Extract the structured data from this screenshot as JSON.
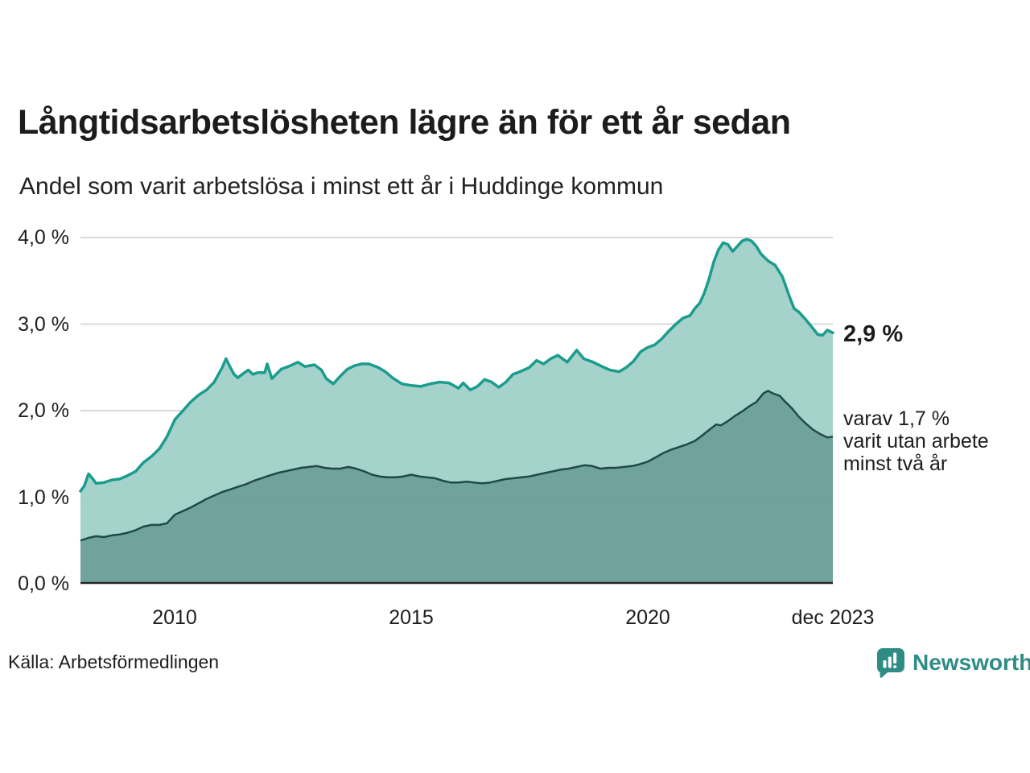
{
  "title": "Långtidsarbetslösheten lägre än för ett år sedan",
  "subtitle": "Andel som varit arbetslösa i minst ett år i Huddinge kommun",
  "source_note": "Källa: Arbetsförmedlingen",
  "brand": {
    "name": "Newsworthy",
    "color": "#2f8c85"
  },
  "annotations": {
    "latest_total": "2,9 %",
    "latest_two_years_lines": [
      "varav 1,7 %",
      "varit utan arbete",
      "minst två år"
    ]
  },
  "colors": {
    "line_long_term": "#1b9c8d",
    "fill_long_term": "#9bcec6",
    "line_two_years": "#1f4b45",
    "fill_two_years": "#6da09a",
    "gridline": "#d9d9d9",
    "baseline": "#262626",
    "text": "#1d1d1d"
  },
  "chart_data": {
    "type": "area",
    "title": "Långtidsarbetslösheten lägre än för ett år sedan",
    "subtitle": "Andel som varit arbetslösa i minst ett år i Huddinge kommun",
    "grid": true,
    "legend_position": "none",
    "x_axis": {
      "range": [
        2008.0,
        2023.92
      ],
      "tick_years": [
        2010,
        2015,
        2020,
        2023.92
      ],
      "tick_labels": [
        "2010",
        "2015",
        "2020",
        "dec 2023"
      ]
    },
    "y_axis": {
      "range": [
        0,
        4
      ],
      "tick_values": [
        0,
        1,
        2,
        3,
        4
      ],
      "tick_labels": [
        "0,0 %",
        "1,0 %",
        "2,0 %",
        "3,0 %",
        "4,0 %"
      ],
      "unit": "%"
    },
    "series": [
      {
        "name": "Andel som varit arbetslösa minst ett år",
        "end_label": "2,9 %",
        "end_value": 2.9,
        "points": [
          [
            2008.0,
            1.07
          ],
          [
            2008.08,
            1.13
          ],
          [
            2008.17,
            1.27
          ],
          [
            2008.25,
            1.22
          ],
          [
            2008.33,
            1.16
          ],
          [
            2008.5,
            1.17
          ],
          [
            2008.67,
            1.2
          ],
          [
            2008.83,
            1.21
          ],
          [
            2009.0,
            1.25
          ],
          [
            2009.17,
            1.3
          ],
          [
            2009.33,
            1.4
          ],
          [
            2009.5,
            1.47
          ],
          [
            2009.67,
            1.56
          ],
          [
            2009.83,
            1.7
          ],
          [
            2010.0,
            1.9
          ],
          [
            2010.17,
            2.0
          ],
          [
            2010.33,
            2.1
          ],
          [
            2010.5,
            2.18
          ],
          [
            2010.67,
            2.24
          ],
          [
            2010.83,
            2.33
          ],
          [
            2011.0,
            2.5
          ],
          [
            2011.08,
            2.6
          ],
          [
            2011.17,
            2.5
          ],
          [
            2011.25,
            2.42
          ],
          [
            2011.33,
            2.38
          ],
          [
            2011.42,
            2.42
          ],
          [
            2011.55,
            2.47
          ],
          [
            2011.65,
            2.42
          ],
          [
            2011.75,
            2.44
          ],
          [
            2011.9,
            2.44
          ],
          [
            2011.95,
            2.54
          ],
          [
            2012.05,
            2.37
          ],
          [
            2012.25,
            2.48
          ],
          [
            2012.4,
            2.51
          ],
          [
            2012.6,
            2.56
          ],
          [
            2012.75,
            2.51
          ],
          [
            2012.95,
            2.53
          ],
          [
            2013.1,
            2.47
          ],
          [
            2013.2,
            2.37
          ],
          [
            2013.35,
            2.31
          ],
          [
            2013.5,
            2.4
          ],
          [
            2013.65,
            2.48
          ],
          [
            2013.8,
            2.52
          ],
          [
            2013.95,
            2.54
          ],
          [
            2014.1,
            2.54
          ],
          [
            2014.3,
            2.5
          ],
          [
            2014.45,
            2.45
          ],
          [
            2014.6,
            2.38
          ],
          [
            2014.8,
            2.31
          ],
          [
            2015.0,
            2.29
          ],
          [
            2015.2,
            2.28
          ],
          [
            2015.4,
            2.31
          ],
          [
            2015.6,
            2.33
          ],
          [
            2015.8,
            2.32
          ],
          [
            2016.0,
            2.26
          ],
          [
            2016.1,
            2.32
          ],
          [
            2016.25,
            2.24
          ],
          [
            2016.4,
            2.28
          ],
          [
            2016.55,
            2.36
          ],
          [
            2016.7,
            2.33
          ],
          [
            2016.85,
            2.27
          ],
          [
            2017.0,
            2.33
          ],
          [
            2017.15,
            2.42
          ],
          [
            2017.3,
            2.45
          ],
          [
            2017.5,
            2.5
          ],
          [
            2017.65,
            2.58
          ],
          [
            2017.8,
            2.54
          ],
          [
            2017.95,
            2.6
          ],
          [
            2018.1,
            2.64
          ],
          [
            2018.3,
            2.56
          ],
          [
            2018.5,
            2.7
          ],
          [
            2018.65,
            2.6
          ],
          [
            2018.85,
            2.56
          ],
          [
            2019.0,
            2.52
          ],
          [
            2019.2,
            2.47
          ],
          [
            2019.4,
            2.45
          ],
          [
            2019.55,
            2.5
          ],
          [
            2019.7,
            2.57
          ],
          [
            2019.85,
            2.68
          ],
          [
            2020.0,
            2.73
          ],
          [
            2020.15,
            2.76
          ],
          [
            2020.3,
            2.83
          ],
          [
            2020.45,
            2.92
          ],
          [
            2020.6,
            3.0
          ],
          [
            2020.75,
            3.07
          ],
          [
            2020.9,
            3.1
          ],
          [
            2021.0,
            3.18
          ],
          [
            2021.1,
            3.24
          ],
          [
            2021.2,
            3.36
          ],
          [
            2021.3,
            3.52
          ],
          [
            2021.4,
            3.72
          ],
          [
            2021.5,
            3.86
          ],
          [
            2021.6,
            3.94
          ],
          [
            2021.7,
            3.92
          ],
          [
            2021.8,
            3.84
          ],
          [
            2021.9,
            3.9
          ],
          [
            2022.0,
            3.96
          ],
          [
            2022.1,
            3.98
          ],
          [
            2022.2,
            3.96
          ],
          [
            2022.3,
            3.9
          ],
          [
            2022.4,
            3.81
          ],
          [
            2022.55,
            3.73
          ],
          [
            2022.7,
            3.68
          ],
          [
            2022.85,
            3.55
          ],
          [
            2023.0,
            3.32
          ],
          [
            2023.1,
            3.18
          ],
          [
            2023.2,
            3.14
          ],
          [
            2023.35,
            3.05
          ],
          [
            2023.5,
            2.95
          ],
          [
            2023.6,
            2.88
          ],
          [
            2023.7,
            2.87
          ],
          [
            2023.8,
            2.93
          ],
          [
            2023.92,
            2.9
          ]
        ]
      },
      {
        "name": "varav utan arbete minst två år",
        "end_label": "varav 1,7 % varit utan arbete minst två år",
        "end_value": 1.7,
        "points": [
          [
            2008.0,
            0.5
          ],
          [
            2008.17,
            0.53
          ],
          [
            2008.33,
            0.55
          ],
          [
            2008.5,
            0.54
          ],
          [
            2008.67,
            0.56
          ],
          [
            2008.83,
            0.57
          ],
          [
            2009.0,
            0.59
          ],
          [
            2009.17,
            0.62
          ],
          [
            2009.33,
            0.66
          ],
          [
            2009.5,
            0.68
          ],
          [
            2009.67,
            0.68
          ],
          [
            2009.83,
            0.7
          ],
          [
            2010.0,
            0.8
          ],
          [
            2010.17,
            0.84
          ],
          [
            2010.33,
            0.88
          ],
          [
            2010.5,
            0.93
          ],
          [
            2010.67,
            0.98
          ],
          [
            2010.83,
            1.02
          ],
          [
            2011.0,
            1.06
          ],
          [
            2011.17,
            1.09
          ],
          [
            2011.33,
            1.12
          ],
          [
            2011.5,
            1.15
          ],
          [
            2011.67,
            1.19
          ],
          [
            2011.83,
            1.22
          ],
          [
            2012.0,
            1.25
          ],
          [
            2012.17,
            1.28
          ],
          [
            2012.33,
            1.3
          ],
          [
            2012.5,
            1.32
          ],
          [
            2012.67,
            1.34
          ],
          [
            2012.83,
            1.35
          ],
          [
            2013.0,
            1.36
          ],
          [
            2013.17,
            1.34
          ],
          [
            2013.33,
            1.33
          ],
          [
            2013.5,
            1.33
          ],
          [
            2013.67,
            1.35
          ],
          [
            2013.83,
            1.33
          ],
          [
            2014.0,
            1.3
          ],
          [
            2014.17,
            1.26
          ],
          [
            2014.33,
            1.24
          ],
          [
            2014.5,
            1.23
          ],
          [
            2014.67,
            1.23
          ],
          [
            2014.83,
            1.24
          ],
          [
            2015.0,
            1.26
          ],
          [
            2015.17,
            1.24
          ],
          [
            2015.33,
            1.23
          ],
          [
            2015.5,
            1.22
          ],
          [
            2015.67,
            1.19
          ],
          [
            2015.83,
            1.17
          ],
          [
            2016.0,
            1.17
          ],
          [
            2016.17,
            1.18
          ],
          [
            2016.33,
            1.17
          ],
          [
            2016.5,
            1.16
          ],
          [
            2016.67,
            1.17
          ],
          [
            2016.83,
            1.19
          ],
          [
            2017.0,
            1.21
          ],
          [
            2017.17,
            1.22
          ],
          [
            2017.33,
            1.23
          ],
          [
            2017.5,
            1.24
          ],
          [
            2017.67,
            1.26
          ],
          [
            2017.83,
            1.28
          ],
          [
            2018.0,
            1.3
          ],
          [
            2018.17,
            1.32
          ],
          [
            2018.33,
            1.33
          ],
          [
            2018.5,
            1.35
          ],
          [
            2018.67,
            1.37
          ],
          [
            2018.83,
            1.36
          ],
          [
            2019.0,
            1.33
          ],
          [
            2019.17,
            1.34
          ],
          [
            2019.33,
            1.34
          ],
          [
            2019.5,
            1.35
          ],
          [
            2019.67,
            1.36
          ],
          [
            2019.83,
            1.38
          ],
          [
            2020.0,
            1.41
          ],
          [
            2020.17,
            1.46
          ],
          [
            2020.33,
            1.51
          ],
          [
            2020.5,
            1.55
          ],
          [
            2020.67,
            1.58
          ],
          [
            2020.83,
            1.61
          ],
          [
            2021.0,
            1.65
          ],
          [
            2021.17,
            1.72
          ],
          [
            2021.33,
            1.79
          ],
          [
            2021.45,
            1.84
          ],
          [
            2021.55,
            1.83
          ],
          [
            2021.7,
            1.88
          ],
          [
            2021.85,
            1.94
          ],
          [
            2022.0,
            1.99
          ],
          [
            2022.15,
            2.05
          ],
          [
            2022.3,
            2.1
          ],
          [
            2022.45,
            2.2
          ],
          [
            2022.55,
            2.23
          ],
          [
            2022.65,
            2.2
          ],
          [
            2022.8,
            2.17
          ],
          [
            2022.9,
            2.11
          ],
          [
            2023.05,
            2.03
          ],
          [
            2023.2,
            1.93
          ],
          [
            2023.35,
            1.85
          ],
          [
            2023.5,
            1.78
          ],
          [
            2023.65,
            1.73
          ],
          [
            2023.8,
            1.69
          ],
          [
            2023.92,
            1.7
          ]
        ]
      }
    ]
  }
}
